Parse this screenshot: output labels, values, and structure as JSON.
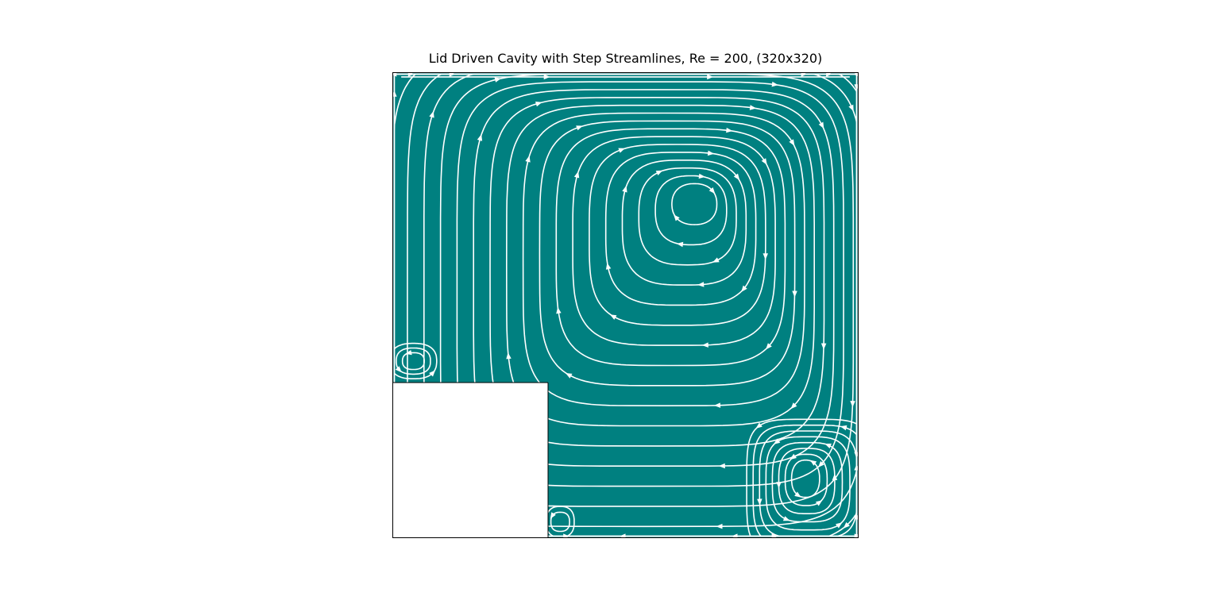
{
  "chart_data": {
    "type": "streamplot",
    "title": "Lid Driven Cavity with Step Streamlines, Re = 200, (320x320)",
    "xlabel": "",
    "ylabel": "",
    "xlim": [
      0,
      1
    ],
    "ylim": [
      0,
      1
    ],
    "axis_ticks_visible": false,
    "grid": false,
    "step": {
      "x": [
        0,
        0.333
      ],
      "y": [
        0,
        0.333
      ],
      "fill": "#ffffff"
    },
    "colors": {
      "fluid": "#008080",
      "streamline": "#ffffff",
      "frame": "#000000"
    },
    "vortices": [
      {
        "name": "primary",
        "center": [
          0.655,
          0.73
        ],
        "rotation": "clockwise"
      },
      {
        "name": "bottom-right secondary",
        "center": [
          0.885,
          0.13
        ],
        "rotation": "counterclockwise"
      },
      {
        "name": "step-top corner",
        "center": [
          0.045,
          0.38
        ],
        "rotation": "counterclockwise"
      },
      {
        "name": "step-foot corner",
        "center": [
          0.36,
          0.035
        ],
        "rotation": "counterclockwise"
      }
    ]
  }
}
